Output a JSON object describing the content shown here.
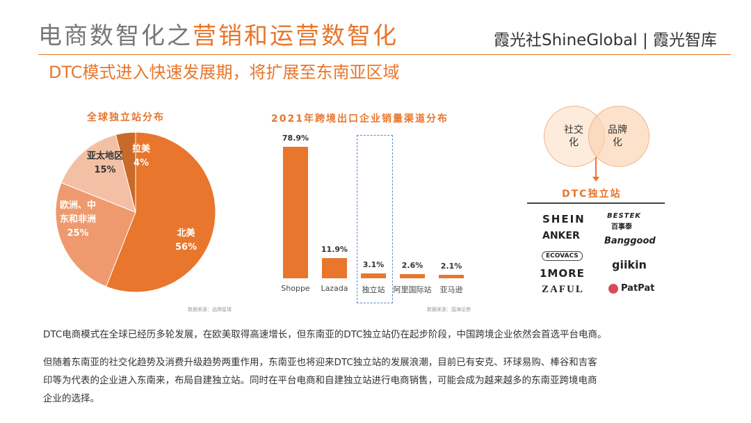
{
  "header": {
    "title_plain": "电商数智化之",
    "title_accent": "营销和运营数智化",
    "brand": "霞光社ShineGlobal | 霞光智库",
    "subtitle": "DTC模式进入快速发展期，将扩展至东南亚区域"
  },
  "colors": {
    "accent": "#e8762c",
    "pie_light": "#ee9a6e",
    "pie_pale": "#f3c0a6",
    "pie_dark": "#c96a2a"
  },
  "pie": {
    "title": "全球独立站分布",
    "source": "数据来源：品牌星球",
    "labels": {
      "north_america_name": "北美",
      "north_america_pct": "56%",
      "emea_name_1": "欧洲、中",
      "emea_name_2": "东和非洲",
      "emea_pct": "25%",
      "apac_name": "亚太地区",
      "apac_pct": "15%",
      "latam_name": "拉美",
      "latam_pct": "4%"
    }
  },
  "bar": {
    "title": "2021年跨境出口企业销量渠道分布",
    "source": "数据来源：国海证券",
    "value_labels": [
      "78.9%",
      "11.9%",
      "3.1%",
      "2.6%",
      "2.1%"
    ],
    "categories": [
      "Shoppe",
      "Lazada",
      "独立站",
      "阿里国际站",
      "亚马逊"
    ]
  },
  "chart_data": [
    {
      "type": "pie",
      "title": "全球独立站分布",
      "categories": [
        "北美",
        "欧洲、中东和非洲",
        "亚太地区",
        "拉美"
      ],
      "values": [
        56,
        25,
        15,
        4
      ]
    },
    {
      "type": "bar",
      "title": "2021年跨境出口企业销量渠道分布",
      "categories": [
        "Shoppe",
        "Lazada",
        "独立站",
        "阿里国际站",
        "亚马逊"
      ],
      "values": [
        78.9,
        11.9,
        3.1,
        2.6,
        2.1
      ],
      "ylim": [
        0,
        100
      ]
    }
  ],
  "venn": {
    "left_line1": "社交",
    "left_line2": "化",
    "right_line1": "品牌",
    "right_line2": "化",
    "result": "DTC独立站"
  },
  "logos": [
    "SHEIN",
    "BESTEK",
    "百事泰",
    "ANKER",
    "Banggood",
    "ECOVACS",
    "giikin",
    "1MORE",
    "ZAFUL",
    "PatPat"
  ],
  "paragraphs": [
    "DTC电商模式在全球已经历多轮发展，在欧美取得高速增长，但东南亚的DTC独立站仍在起步阶段，中国跨境企业依然会首选平台电商。",
    "但随着东南亚的社交化趋势及消费升级趋势两重作用，东南亚也将迎来DTC独立站的发展浪潮，目前已有安克、环球易购、棒谷和吉客",
    "印等为代表的企业进入东南来，布局自建独立站。同时在平台电商和自建独立站进行电商销售，可能会成为越来越多的东南亚跨境电商",
    "企业的选择。"
  ]
}
